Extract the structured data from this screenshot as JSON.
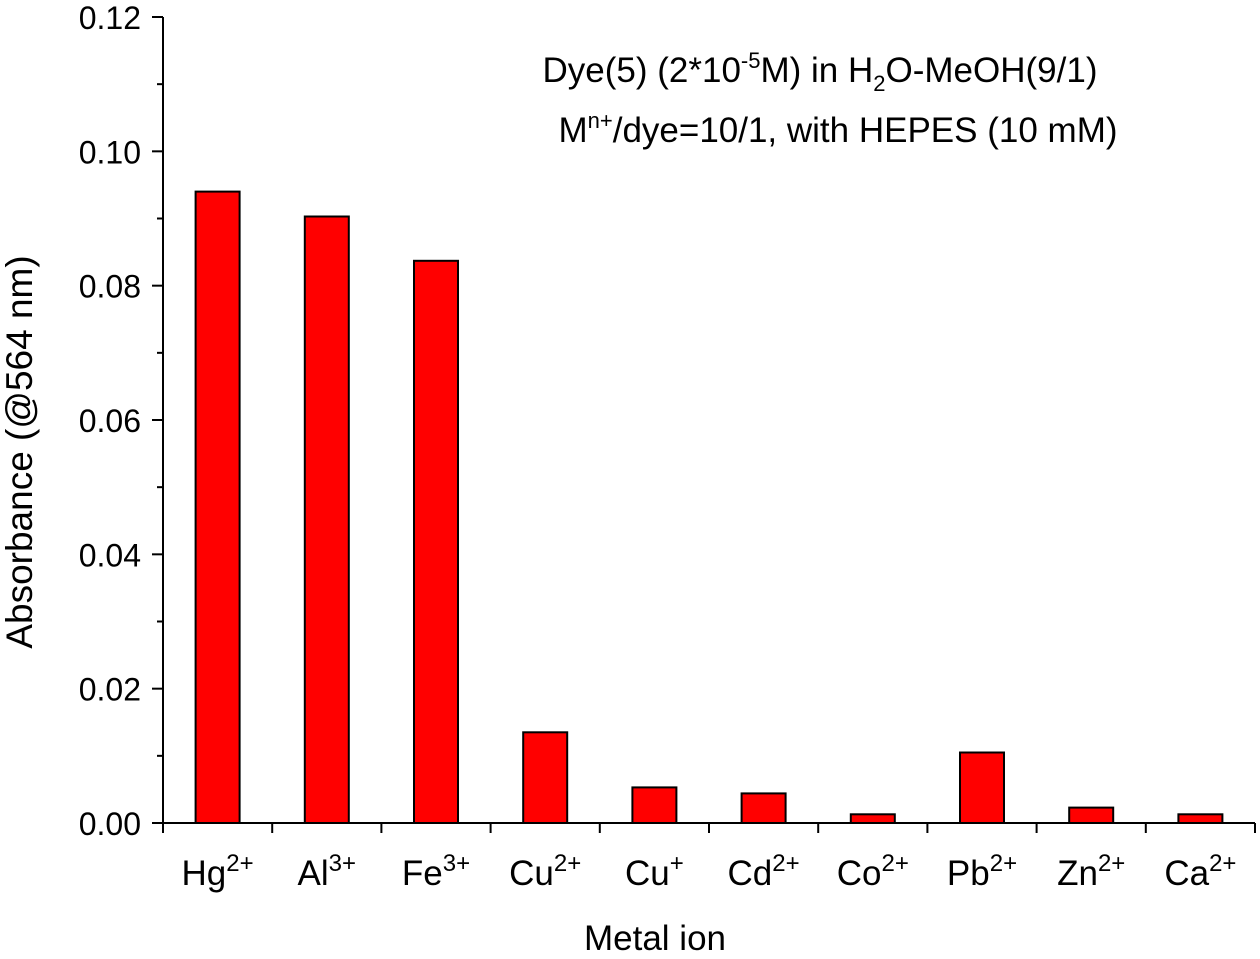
{
  "chart_data": {
    "type": "bar",
    "categories": [
      {
        "base": "Hg",
        "sup": "2+"
      },
      {
        "base": "Al",
        "sup": "3+"
      },
      {
        "base": "Fe",
        "sup": "3+"
      },
      {
        "base": "Cu",
        "sup": "2+"
      },
      {
        "base": "Cu",
        "sup": "+"
      },
      {
        "base": "Cd",
        "sup": "2+"
      },
      {
        "base": "Co",
        "sup": "2+"
      },
      {
        "base": "Pb",
        "sup": "2+"
      },
      {
        "base": "Zn",
        "sup": "2+"
      },
      {
        "base": "Ca",
        "sup": "2+"
      }
    ],
    "values": [
      0.094,
      0.0903,
      0.0837,
      0.0135,
      0.0053,
      0.0044,
      0.0013,
      0.0105,
      0.0023,
      0.0013
    ],
    "xlabel": "Metal ion",
    "ylabel": "Absorbance (@564 nm)",
    "ylim": [
      0,
      0.12
    ],
    "yticks": [
      "0.00",
      "0.02",
      "0.04",
      "0.06",
      "0.08",
      "0.10",
      "0.12"
    ],
    "bar_color": "#ff0000",
    "grid": false,
    "annotation": {
      "line1": [
        {
          "t": "Dye(5) (2*10"
        },
        {
          "t": "-5",
          "sup": true
        },
        {
          "t": "M) in H"
        },
        {
          "t": "2",
          "sub": true
        },
        {
          "t": "O-MeOH(9/1)"
        }
      ],
      "line2": [
        {
          "t": "M"
        },
        {
          "t": "n+",
          "sup": true
        },
        {
          "t": "/dye=10/1, with HEPES (10 mM)"
        }
      ]
    }
  }
}
